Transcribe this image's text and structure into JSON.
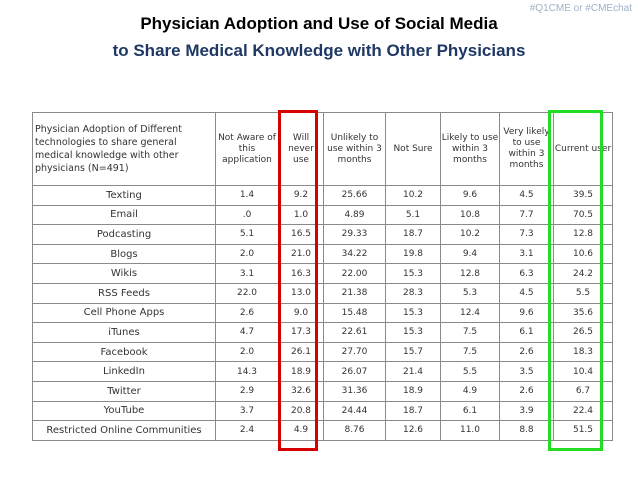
{
  "hashtag": "#Q1CME or #CMEchat",
  "title_line1": "Physician Adoption and Use of Social Media",
  "title_line2": "to Share Medical Knowledge with Other Physicians",
  "table": {
    "description": "Physician Adoption of Different technologies to share general medical knowledge with other physicians (N=491)",
    "headers": [
      "Not Aware of this application",
      "Will never use",
      "Unlikely to use within 3 months",
      "Not Sure",
      "Likely to use within 3 months",
      "Very likely to use within 3 months",
      "Current user"
    ],
    "rows": [
      {
        "label": "Texting",
        "values": [
          "1.4",
          "9.2",
          "25.66",
          "10.2",
          "9.6",
          "4.5",
          "39.5"
        ]
      },
      {
        "label": "Email",
        "values": [
          ".0",
          "1.0",
          "4.89",
          "5.1",
          "10.8",
          "7.7",
          "70.5"
        ]
      },
      {
        "label": "Podcasting",
        "values": [
          "5.1",
          "16.5",
          "29.33",
          "18.7",
          "10.2",
          "7.3",
          "12.8"
        ]
      },
      {
        "label": "Blogs",
        "values": [
          "2.0",
          "21.0",
          "34.22",
          "19.8",
          "9.4",
          "3.1",
          "10.6"
        ]
      },
      {
        "label": "Wikis",
        "values": [
          "3.1",
          "16.3",
          "22.00",
          "15.3",
          "12.8",
          "6.3",
          "24.2"
        ]
      },
      {
        "label": "RSS Feeds",
        "values": [
          "22.0",
          "13.0",
          "21.38",
          "28.3",
          "5.3",
          "4.5",
          "5.5"
        ]
      },
      {
        "label": "Cell Phone Apps",
        "values": [
          "2.6",
          "9.0",
          "15.48",
          "15.3",
          "12.4",
          "9.6",
          "35.6"
        ]
      },
      {
        "label": "iTunes",
        "values": [
          "4.7",
          "17.3",
          "22.61",
          "15.3",
          "7.5",
          "6.1",
          "26.5"
        ]
      },
      {
        "label": "Facebook",
        "values": [
          "2.0",
          "26.1",
          "27.70",
          "15.7",
          "7.5",
          "2.6",
          "18.3"
        ]
      },
      {
        "label": "LinkedIn",
        "values": [
          "14.3",
          "18.9",
          "26.07",
          "21.4",
          "5.5",
          "3.5",
          "10.4"
        ]
      },
      {
        "label": "Twitter",
        "values": [
          "2.9",
          "32.6",
          "31.36",
          "18.9",
          "4.9",
          "2.6",
          "6.7"
        ]
      },
      {
        "label": "YouTube",
        "values": [
          "3.7",
          "20.8",
          "24.44",
          "18.7",
          "6.1",
          "3.9",
          "22.4"
        ]
      },
      {
        "label": "Restricted Online Communities",
        "values": [
          "2.4",
          "4.9",
          "8.76",
          "12.6",
          "11.0",
          "8.8",
          "51.5"
        ]
      }
    ]
  },
  "highlights": {
    "will_never_use_color": "#d60000",
    "current_user_color": "#22dd22"
  }
}
